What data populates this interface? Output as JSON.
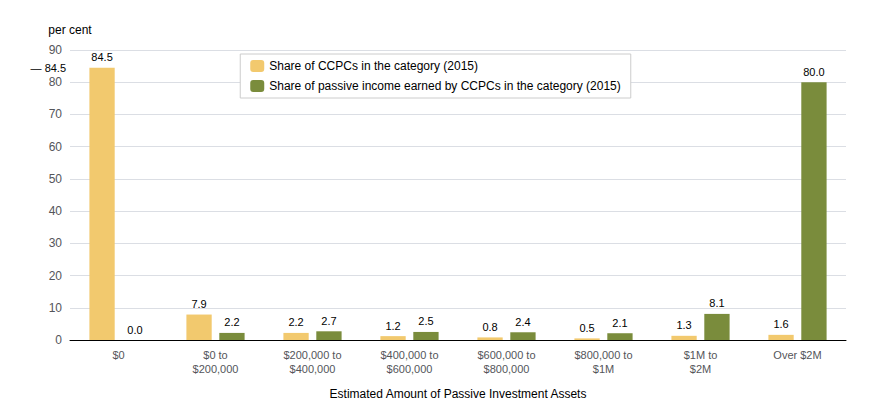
{
  "chart_data": {
    "type": "bar",
    "ylabel": "per cent",
    "xlabel": "Estimated Amount of Passive Investment Assets",
    "categories": [
      "$0",
      "$0 to\n$200,000",
      "$200,000 to\n$400,000",
      "$400,000 to\n$600,000",
      "$600,000 to\n$800,000",
      "$800,000 to\n$1M",
      "$1M to\n$2M",
      "Over $2M"
    ],
    "series": [
      {
        "name": "Share of CCPCs in the category (2015)",
        "color": "#F2C96E",
        "values": [
          84.5,
          7.9,
          2.2,
          1.2,
          0.8,
          0.5,
          1.3,
          1.6
        ]
      },
      {
        "name": "Share of passive income earned by CCPCs in the category (2015)",
        "color": "#7A8C3C",
        "values": [
          0.0,
          2.2,
          2.7,
          2.5,
          2.4,
          2.1,
          8.1,
          80.0
        ],
        "value_labels": [
          "0.0",
          "2.2",
          "2.7",
          "2.5",
          "2.4",
          "2.1",
          "8.1",
          "80.0"
        ]
      }
    ],
    "ylim": [
      0,
      90
    ],
    "yticks": [
      0,
      10,
      20,
      30,
      40,
      50,
      60,
      70,
      80,
      90
    ],
    "grid": true,
    "legend": "upper center",
    "data_labels": true,
    "annotations": [
      {
        "text": "— 84.5",
        "category": "$0",
        "y": 84.5
      }
    ]
  }
}
